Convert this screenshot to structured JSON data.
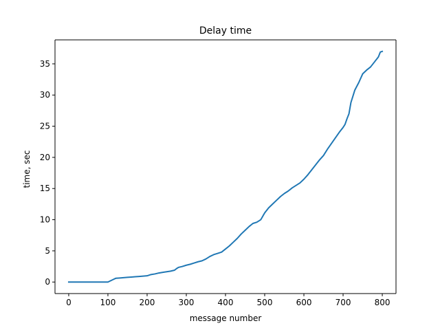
{
  "chart_data": {
    "type": "line",
    "title": "Delay time",
    "xlabel": "message number",
    "ylabel": "time, sec",
    "xlim": [
      -35,
      835
    ],
    "ylim": [
      -1.85,
      38.85
    ],
    "xticks": [
      0,
      100,
      200,
      300,
      400,
      500,
      600,
      700,
      800
    ],
    "yticks": [
      0,
      5,
      10,
      15,
      20,
      25,
      30,
      35
    ],
    "grid": false,
    "series": [
      {
        "color": "#1f77b4",
        "x": [
          0,
          100,
          105,
          110,
          115,
          120,
          130,
          140,
          150,
          160,
          170,
          180,
          200,
          210,
          220,
          230,
          240,
          250,
          260,
          270,
          275,
          280,
          290,
          300,
          310,
          320,
          330,
          340,
          350,
          360,
          370,
          380,
          390,
          400,
          410,
          420,
          430,
          440,
          450,
          460,
          470,
          480,
          490,
          500,
          510,
          520,
          530,
          540,
          550,
          560,
          570,
          580,
          590,
          600,
          610,
          620,
          630,
          640,
          650,
          660,
          670,
          680,
          690,
          700,
          705,
          710,
          715,
          720,
          725,
          730,
          740,
          745,
          750,
          760,
          770,
          780,
          790,
          795,
          800
        ],
        "y": [
          0,
          0,
          0.15,
          0.3,
          0.45,
          0.6,
          0.65,
          0.7,
          0.75,
          0.8,
          0.85,
          0.9,
          1.0,
          1.2,
          1.3,
          1.45,
          1.55,
          1.65,
          1.75,
          1.9,
          2.15,
          2.35,
          2.5,
          2.7,
          2.85,
          3.05,
          3.25,
          3.4,
          3.7,
          4.1,
          4.4,
          4.6,
          4.8,
          5.3,
          5.8,
          6.4,
          7.0,
          7.7,
          8.3,
          8.9,
          9.4,
          9.6,
          10.0,
          11.1,
          11.9,
          12.5,
          13.1,
          13.7,
          14.2,
          14.6,
          15.1,
          15.5,
          15.9,
          16.5,
          17.2,
          18.0,
          18.8,
          19.6,
          20.3,
          21.3,
          22.2,
          23.1,
          24.0,
          24.8,
          25.3,
          26.2,
          27.0,
          28.8,
          29.8,
          30.8,
          32.0,
          32.7,
          33.4,
          34.0,
          34.5,
          35.3,
          36.1,
          36.9,
          37.0
        ]
      }
    ]
  }
}
